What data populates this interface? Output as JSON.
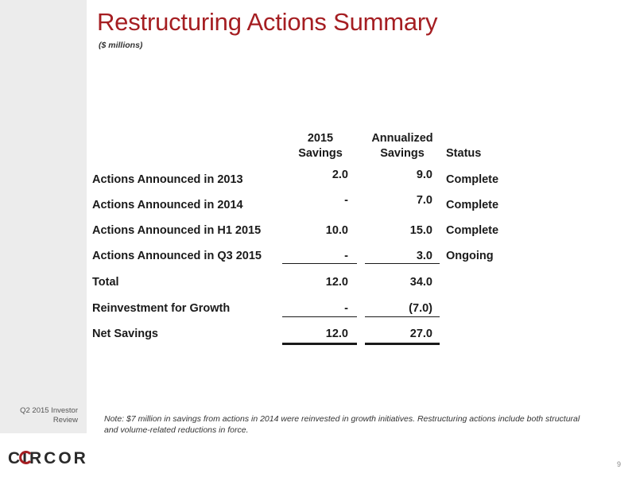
{
  "slide": {
    "title": "Restructuring Actions Summary",
    "subtitle": "($ millions)",
    "footer_label_line1": "Q2 2015 Investor",
    "footer_label_line2": "Review",
    "page_number": "9",
    "logo_text": "CIRCOR",
    "colors": {
      "title_red": "#a51e22",
      "sidebar_gray": "#ececec"
    }
  },
  "table": {
    "headers": {
      "col1_line1": "2015",
      "col1_line2": "Savings",
      "col2_line1": "Annualized",
      "col2_line2": "Savings",
      "col3": "Status"
    },
    "rows": [
      {
        "label": "Actions Announced in 2013",
        "savings_2015": "2.0",
        "annualized": "9.0",
        "status": "Complete"
      },
      {
        "label": "Actions Announced in 2014",
        "savings_2015": "-",
        "annualized": "7.0",
        "status": "Complete"
      },
      {
        "label": "Actions Announced in H1 2015",
        "savings_2015": "10.0",
        "annualized": "15.0",
        "status": "Complete"
      },
      {
        "label": "Actions Announced in Q3 2015",
        "savings_2015": "-",
        "annualized": "3.0",
        "status": "Ongoing"
      },
      {
        "label": "Total",
        "savings_2015": "12.0",
        "annualized": "34.0",
        "status": ""
      },
      {
        "label": "Reinvestment for Growth",
        "savings_2015": "-",
        "annualized": "(7.0)",
        "status": ""
      },
      {
        "label": "Net Savings",
        "savings_2015": "12.0",
        "annualized": "27.0",
        "status": ""
      }
    ]
  },
  "note": {
    "text": "Note: $7 million in savings from actions in 2014 were reinvested in growth initiatives.  Restructuring actions include both structural and volume-related reductions in force."
  }
}
